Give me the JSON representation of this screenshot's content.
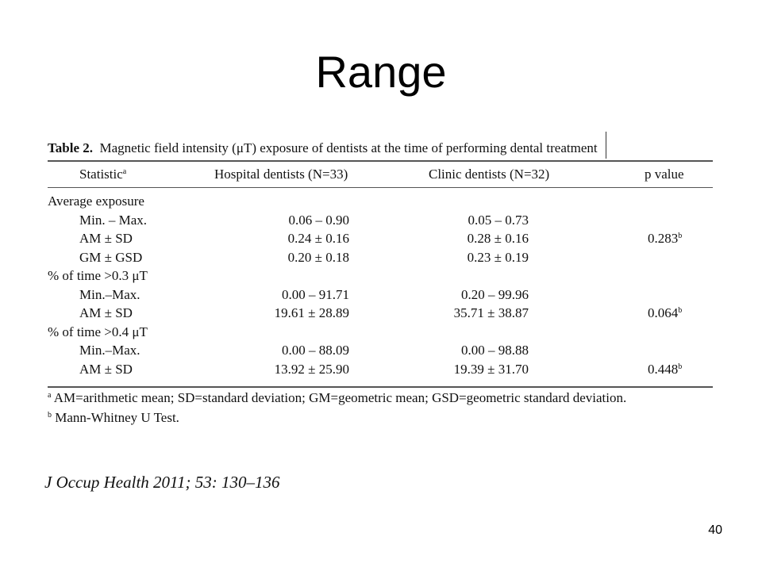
{
  "slide": {
    "title": "Range",
    "page_number": "40"
  },
  "table": {
    "label": "Table 2.",
    "caption": "Magnetic field intensity (μT) exposure of dentists at the time of performing dental treatment",
    "headers": {
      "statistic": "Statistic",
      "statistic_sup": "a",
      "hospital": "Hospital dentists (N=33)",
      "clinic": "Clinic dentists (N=32)",
      "p_value": "p value"
    },
    "rows": [
      {
        "label": "Average exposure",
        "hospital": "",
        "clinic": "",
        "p": "",
        "p_sup": ""
      },
      {
        "label": "Min. – Max.",
        "hospital": "0.06 – 0.90",
        "clinic": "0.05 – 0.73",
        "p": "",
        "p_sup": ""
      },
      {
        "label": "AM ± SD",
        "hospital": "0.24 ± 0.16",
        "clinic": "0.28 ± 0.16",
        "p": "0.283",
        "p_sup": "b"
      },
      {
        "label": "GM ± GSD",
        "hospital": "0.20 ± 0.18",
        "clinic": "0.23 ± 0.19",
        "p": "",
        "p_sup": ""
      },
      {
        "label": "% of time >0.3 μT",
        "hospital": "",
        "clinic": "",
        "p": "",
        "p_sup": ""
      },
      {
        "label": "Min.–Max.",
        "hospital": "0.00 – 91.71",
        "clinic": "0.20 – 99.96",
        "p": "",
        "p_sup": ""
      },
      {
        "label": "AM ± SD",
        "hospital": "19.61 ± 28.89",
        "clinic": "35.71 ± 38.87",
        "p": "0.064",
        "p_sup": "b"
      },
      {
        "label": "% of time >0.4 μT",
        "hospital": "",
        "clinic": "",
        "p": "",
        "p_sup": ""
      },
      {
        "label": "Min.–Max.",
        "hospital": "0.00 – 88.09",
        "clinic": "0.00 – 98.88",
        "p": "",
        "p_sup": ""
      },
      {
        "label": "AM ± SD",
        "hospital": "13.92 ± 25.90",
        "clinic": "19.39 ± 31.70",
        "p": "0.448",
        "p_sup": "b"
      }
    ],
    "footnotes": [
      {
        "mark": "a",
        "text": "AM=arithmetic mean; SD=standard deviation; GM=geometric mean; GSD=geometric standard deviation."
      },
      {
        "mark": "b",
        "text": "Mann-Whitney U Test."
      }
    ]
  },
  "citation": "J Occup Health 2011; 53: 130–136"
}
